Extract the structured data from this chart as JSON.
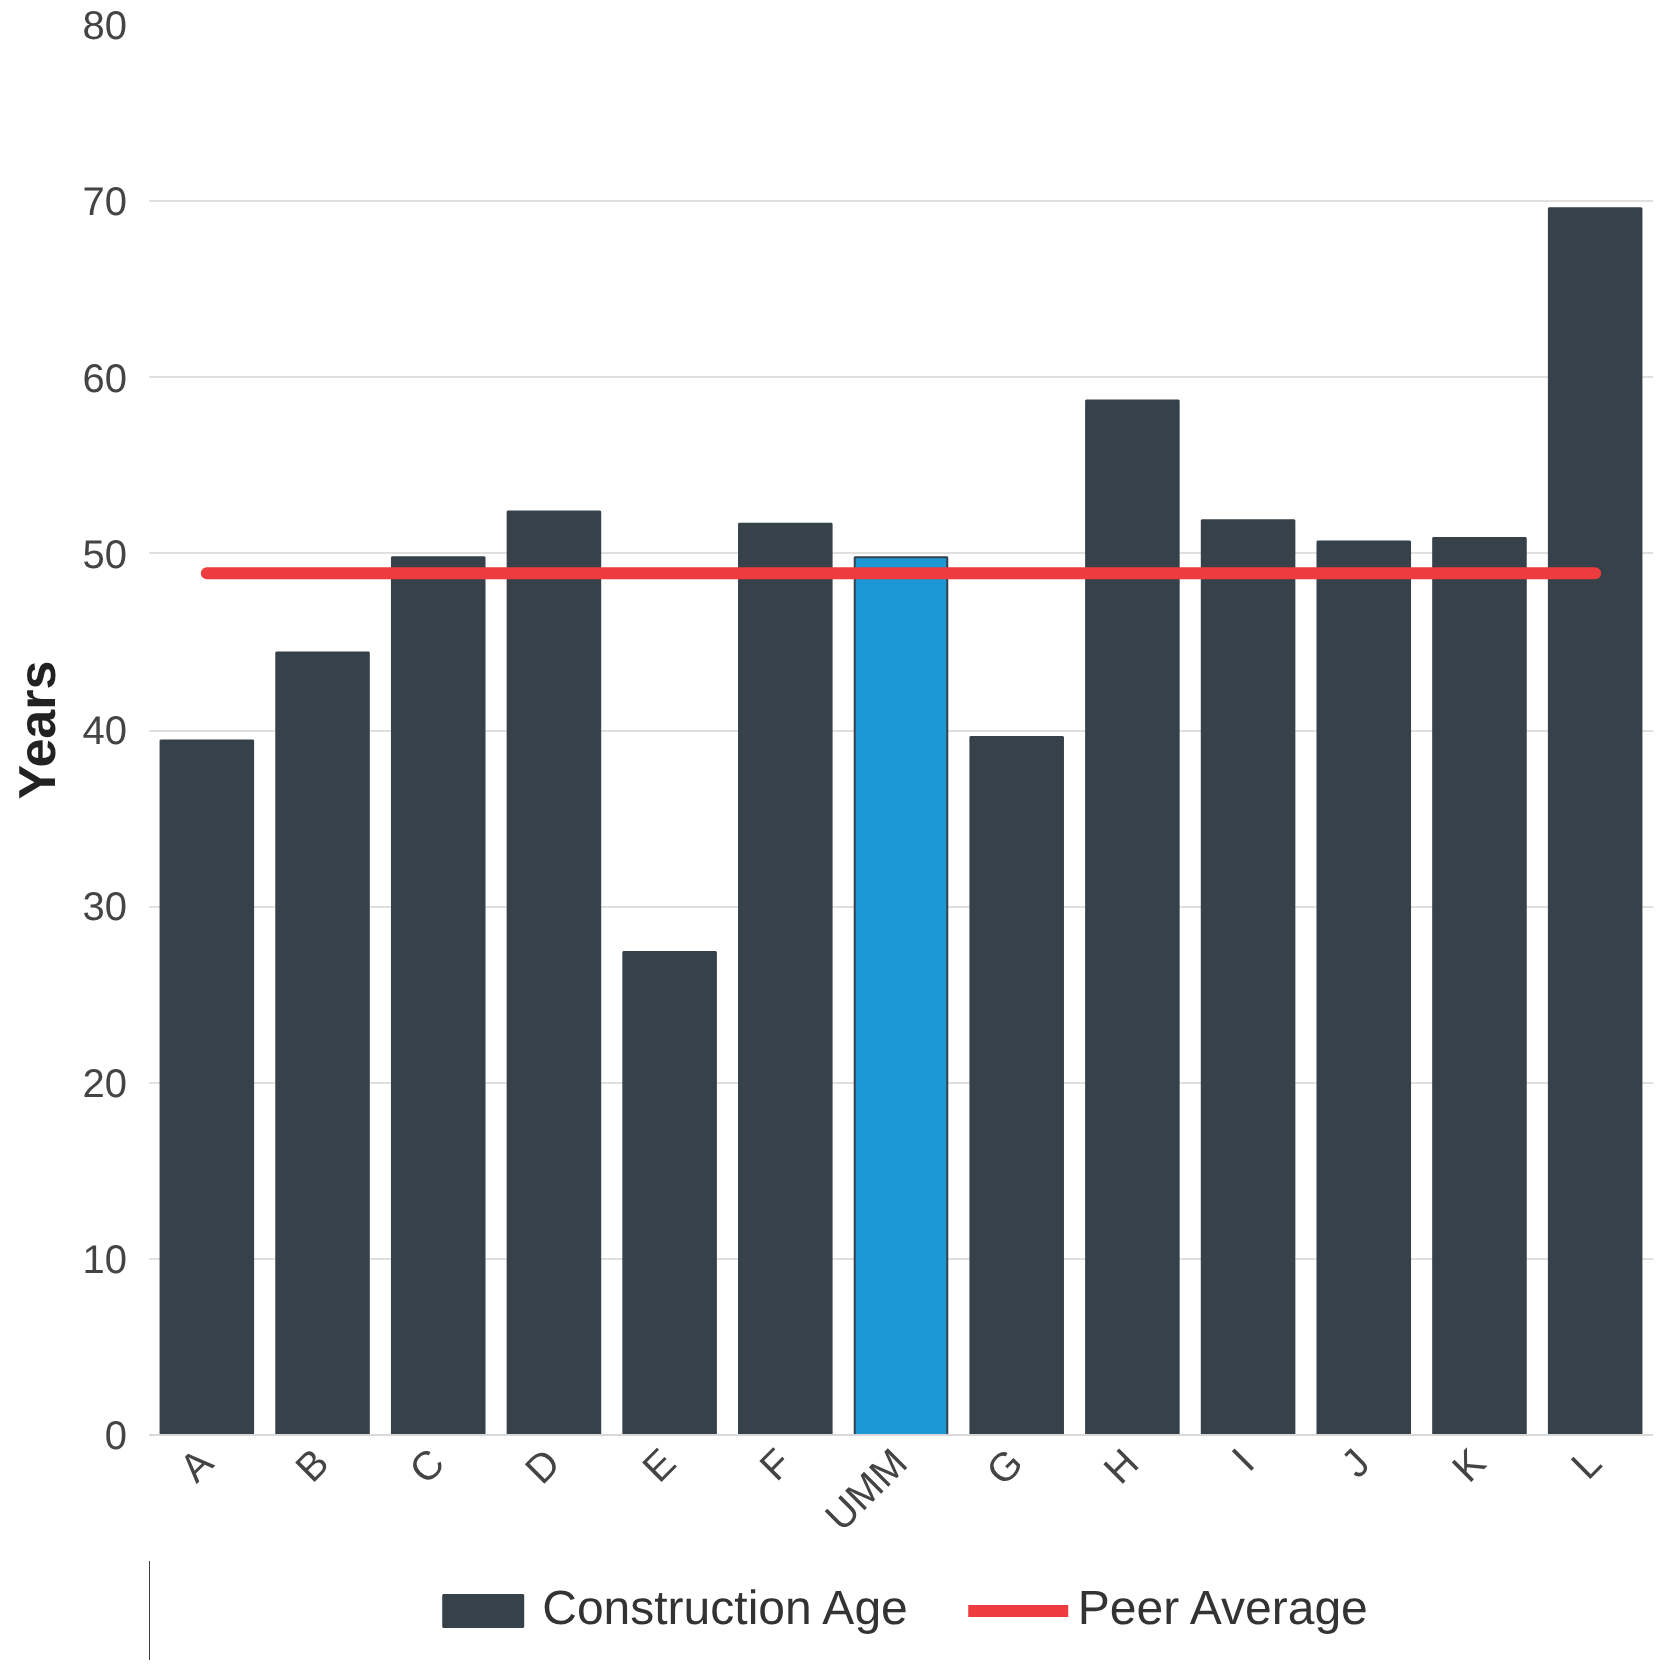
{
  "chart_data": {
    "type": "bar",
    "ylabel": "Years",
    "categories": [
      "A",
      "B",
      "C",
      "D",
      "E",
      "F",
      "UMM",
      "G",
      "H",
      "I",
      "J",
      "K",
      "L"
    ],
    "series": [
      {
        "name": "Construction Age",
        "color": "#36414a",
        "colors": [
          "#36414a",
          "#36414a",
          "#36414a",
          "#36414a",
          "#36414a",
          "#36414a",
          "#1b98d5",
          "#36414a",
          "#36414a",
          "#36414a",
          "#36414a",
          "#36414a",
          "#36414a"
        ],
        "values": [
          39.4,
          44.4,
          49.8,
          52.4,
          27.4,
          51.7,
          49.8,
          39.6,
          58.7,
          51.9,
          50.7,
          50.9,
          69.6
        ]
      },
      {
        "name": "Peer Average",
        "type": "line",
        "color": "#ee3b3f",
        "values": [
          48.9,
          48.9,
          48.9,
          48.9,
          48.9,
          48.9,
          48.9,
          48.9,
          48.9,
          48.9,
          48.9,
          48.9,
          48.9
        ]
      }
    ],
    "ylim": [
      0,
      80
    ],
    "yticks": [
      0,
      10,
      20,
      30,
      40,
      50,
      60,
      70,
      80
    ],
    "grid": "y",
    "legend": "bottom"
  }
}
